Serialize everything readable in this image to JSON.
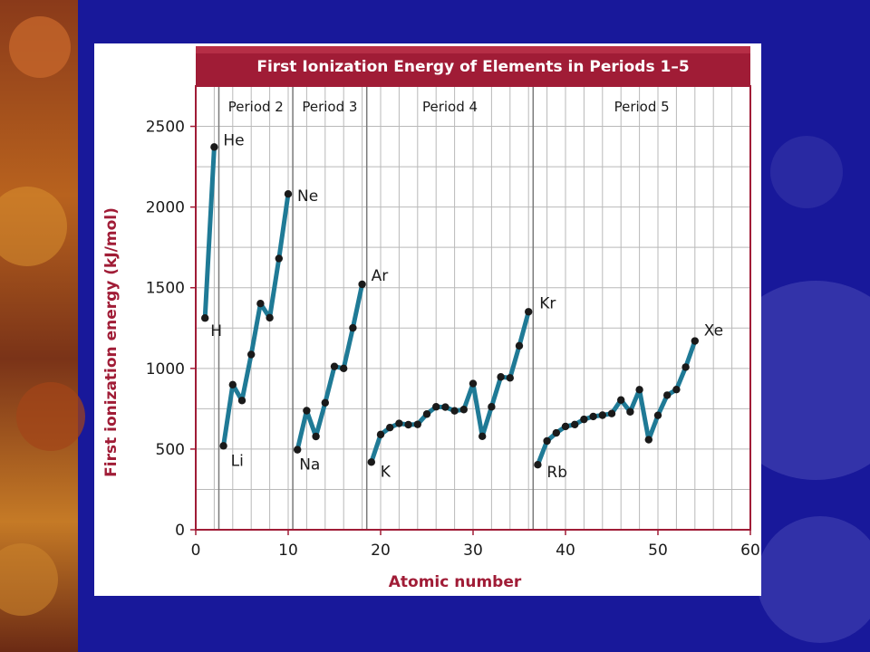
{
  "chart_data": {
    "type": "line",
    "title": "First Ionization Energy of Elements in Periods 1–5",
    "xlabel": "Atomic number",
    "ylabel": "First ionization energy (kJ/mol)",
    "xlim": [
      0,
      60
    ],
    "ylim": [
      0,
      2750
    ],
    "xticks": [
      "0",
      "10",
      "20",
      "30",
      "40",
      "50",
      "60"
    ],
    "yticks": [
      "0",
      "500",
      "1000",
      "1500",
      "2000",
      "2500"
    ],
    "grid": true,
    "period_labels": [
      "Period 2",
      "Period 3",
      "Period 4",
      "Period 5"
    ],
    "period_boundaries": [
      2.5,
      10.5,
      18.5,
      36.5
    ],
    "line_color": "#1f7a96",
    "marker_color": "#1a1a1a",
    "accent_color": "#a01c36",
    "series": [
      {
        "x": [
          1,
          2
        ],
        "y": [
          1312,
          2372
        ]
      },
      {
        "x": [
          3,
          4,
          5,
          6,
          7,
          8,
          9,
          10
        ],
        "y": [
          520,
          899,
          801,
          1086,
          1402,
          1314,
          1681,
          2081
        ]
      },
      {
        "x": [
          11,
          12,
          13,
          14,
          15,
          16,
          17,
          18
        ],
        "y": [
          496,
          738,
          578,
          787,
          1012,
          1000,
          1251,
          1521
        ]
      },
      {
        "x": [
          19,
          20,
          21,
          22,
          23,
          24,
          25,
          26,
          27,
          28,
          29,
          30,
          31,
          32,
          33,
          34,
          35,
          36
        ],
        "y": [
          419,
          590,
          633,
          659,
          651,
          653,
          717,
          762,
          760,
          737,
          745,
          906,
          579,
          762,
          947,
          941,
          1140,
          1351
        ]
      },
      {
        "x": [
          37,
          38,
          39,
          40,
          41,
          42,
          43,
          44,
          45,
          46,
          47,
          48,
          49,
          50,
          51,
          52,
          53,
          54
        ],
        "y": [
          403,
          550,
          600,
          640,
          652,
          684,
          702,
          710,
          720,
          804,
          731,
          868,
          558,
          709,
          834,
          869,
          1008,
          1170
        ]
      }
    ],
    "annotations": [
      {
        "text": "H",
        "x": 1,
        "y": 1312
      },
      {
        "text": "He",
        "x": 2,
        "y": 2372
      },
      {
        "text": "Li",
        "x": 3,
        "y": 520
      },
      {
        "text": "Ne",
        "x": 10,
        "y": 2081
      },
      {
        "text": "Na",
        "x": 11,
        "y": 496
      },
      {
        "text": "Ar",
        "x": 18,
        "y": 1521
      },
      {
        "text": "K",
        "x": 19,
        "y": 419
      },
      {
        "text": "Kr",
        "x": 36,
        "y": 1351
      },
      {
        "text": "Rb",
        "x": 37,
        "y": 403
      },
      {
        "text": "Xe",
        "x": 54,
        "y": 1170
      }
    ]
  }
}
